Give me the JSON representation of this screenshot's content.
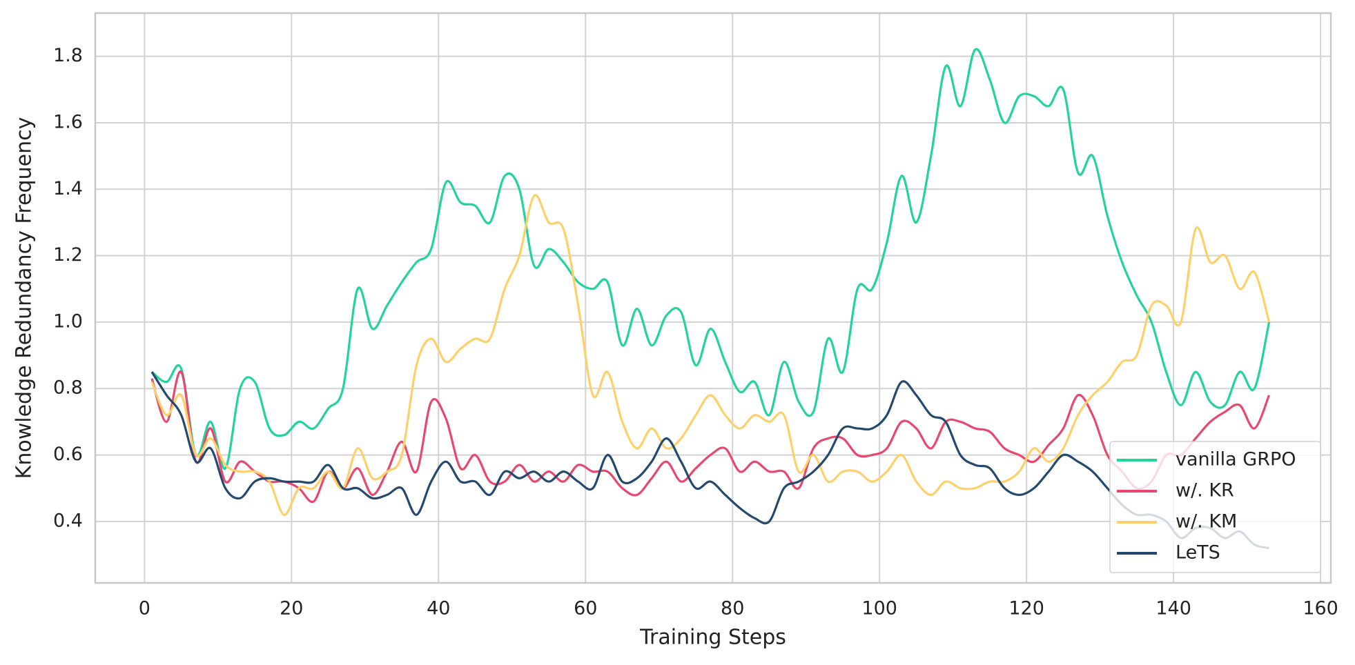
{
  "chart_data": {
    "type": "line",
    "xlabel": "Training Steps",
    "ylabel": "Knowledge Redundancy Frequency",
    "x": [
      1,
      3,
      5,
      7,
      9,
      11,
      13,
      15,
      17,
      19,
      21,
      23,
      25,
      27,
      29,
      31,
      33,
      35,
      37,
      39,
      41,
      43,
      45,
      47,
      49,
      51,
      53,
      55,
      57,
      59,
      61,
      63,
      65,
      67,
      69,
      71,
      73,
      75,
      77,
      79,
      81,
      83,
      85,
      87,
      89,
      91,
      93,
      95,
      97,
      99,
      101,
      103,
      105,
      107,
      109,
      111,
      113,
      115,
      117,
      119,
      121,
      123,
      125,
      127,
      129,
      131,
      133,
      135,
      137,
      139,
      141,
      143,
      145,
      147,
      149,
      151,
      153
    ],
    "series": [
      {
        "name": "vanilla GRPO",
        "color": "#22d39c",
        "values": [
          0.85,
          0.82,
          0.86,
          0.6,
          0.7,
          0.56,
          0.8,
          0.82,
          0.68,
          0.66,
          0.7,
          0.68,
          0.74,
          0.8,
          1.1,
          0.98,
          1.05,
          1.12,
          1.18,
          1.22,
          1.42,
          1.36,
          1.35,
          1.3,
          1.44,
          1.4,
          1.17,
          1.22,
          1.18,
          1.12,
          1.1,
          1.12,
          0.93,
          1.04,
          0.93,
          1.02,
          1.03,
          0.87,
          0.98,
          0.88,
          0.79,
          0.82,
          0.72,
          0.88,
          0.76,
          0.73,
          0.95,
          0.85,
          1.1,
          1.1,
          1.24,
          1.44,
          1.3,
          1.5,
          1.77,
          1.65,
          1.82,
          1.73,
          1.6,
          1.68,
          1.68,
          1.65,
          1.7,
          1.45,
          1.5,
          1.32,
          1.18,
          1.08,
          1.0,
          0.85,
          0.75,
          0.85,
          0.76,
          0.75,
          0.85,
          0.8,
          1.0
        ]
      },
      {
        "name": "w/. KR",
        "color": "#e8476e",
        "values": [
          0.83,
          0.7,
          0.85,
          0.58,
          0.68,
          0.52,
          0.58,
          0.55,
          0.52,
          0.52,
          0.5,
          0.46,
          0.55,
          0.5,
          0.56,
          0.48,
          0.55,
          0.64,
          0.55,
          0.76,
          0.71,
          0.56,
          0.6,
          0.52,
          0.52,
          0.57,
          0.52,
          0.55,
          0.52,
          0.57,
          0.55,
          0.55,
          0.5,
          0.48,
          0.53,
          0.58,
          0.52,
          0.56,
          0.6,
          0.62,
          0.55,
          0.58,
          0.55,
          0.55,
          0.5,
          0.62,
          0.65,
          0.65,
          0.6,
          0.6,
          0.62,
          0.7,
          0.68,
          0.62,
          0.7,
          0.7,
          0.68,
          0.67,
          0.62,
          0.6,
          0.58,
          0.63,
          0.68,
          0.78,
          0.72,
          0.6,
          0.55,
          0.5,
          0.52,
          0.6,
          0.6,
          0.65,
          0.7,
          0.73,
          0.75,
          0.68,
          0.78
        ]
      },
      {
        "name": "w/. KM",
        "color": "#fdd06a",
        "values": [
          0.82,
          0.72,
          0.78,
          0.6,
          0.65,
          0.57,
          0.55,
          0.55,
          0.52,
          0.42,
          0.5,
          0.5,
          0.55,
          0.5,
          0.62,
          0.53,
          0.55,
          0.6,
          0.87,
          0.95,
          0.88,
          0.92,
          0.95,
          0.95,
          1.1,
          1.2,
          1.38,
          1.3,
          1.28,
          1.05,
          0.78,
          0.85,
          0.7,
          0.62,
          0.68,
          0.62,
          0.65,
          0.72,
          0.78,
          0.72,
          0.68,
          0.72,
          0.7,
          0.72,
          0.55,
          0.6,
          0.52,
          0.55,
          0.55,
          0.52,
          0.55,
          0.6,
          0.52,
          0.48,
          0.52,
          0.5,
          0.5,
          0.52,
          0.52,
          0.55,
          0.62,
          0.58,
          0.62,
          0.72,
          0.78,
          0.82,
          0.88,
          0.9,
          1.05,
          1.05,
          1.0,
          1.28,
          1.18,
          1.2,
          1.1,
          1.15,
          1.0
        ]
      },
      {
        "name": "LeTS",
        "color": "#24496e",
        "values": [
          0.85,
          0.78,
          0.72,
          0.58,
          0.62,
          0.5,
          0.47,
          0.52,
          0.53,
          0.52,
          0.52,
          0.52,
          0.57,
          0.5,
          0.5,
          0.47,
          0.48,
          0.5,
          0.42,
          0.52,
          0.58,
          0.52,
          0.52,
          0.48,
          0.55,
          0.53,
          0.55,
          0.52,
          0.55,
          0.52,
          0.5,
          0.6,
          0.52,
          0.53,
          0.58,
          0.65,
          0.58,
          0.5,
          0.52,
          0.48,
          0.44,
          0.41,
          0.4,
          0.5,
          0.52,
          0.55,
          0.6,
          0.68,
          0.68,
          0.68,
          0.72,
          0.82,
          0.78,
          0.72,
          0.7,
          0.6,
          0.57,
          0.56,
          0.5,
          0.48,
          0.5,
          0.55,
          0.6,
          0.58,
          0.55,
          0.5,
          0.45,
          0.42,
          0.42,
          0.4,
          0.35,
          0.38,
          0.38,
          0.35,
          0.37,
          0.33,
          0.32
        ]
      }
    ],
    "xlim": [
      -6.7,
      161.4
    ],
    "ylim": [
      0.215,
      1.93
    ],
    "xticks": [
      0,
      20,
      40,
      60,
      80,
      100,
      120,
      140,
      160
    ],
    "yticks": [
      0.4,
      0.6,
      0.8,
      {
        "value": 1,
        "label": "1.0"
      },
      1.2,
      1.4,
      1.6,
      1.8
    ],
    "grid": true,
    "legend": "lower right"
  }
}
